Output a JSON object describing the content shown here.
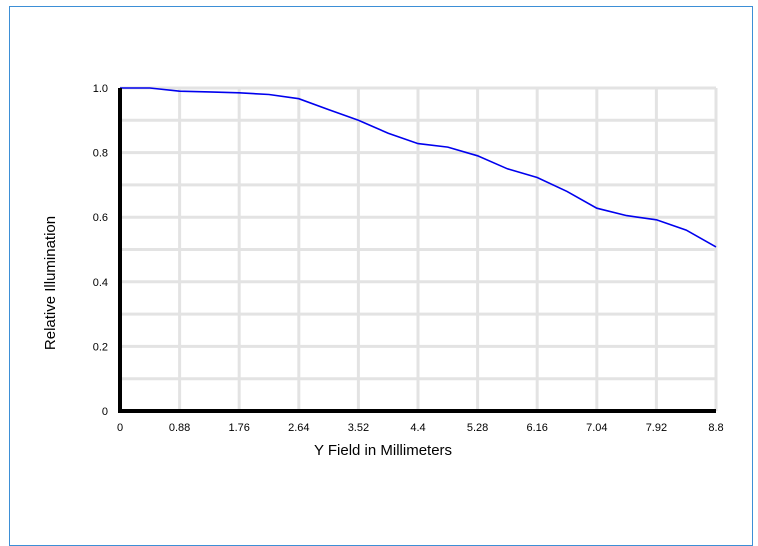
{
  "chart_data": {
    "type": "line",
    "title": "",
    "xlabel": "Y Field in Millimeters",
    "ylabel": "Relative Illumination",
    "xlim": [
      0,
      8.8
    ],
    "ylim": [
      0,
      1.0
    ],
    "x_ticks": [
      "0",
      "0.88",
      "1.76",
      "2.64",
      "3.52",
      "4.4",
      "5.28",
      "6.16",
      "7.04",
      "7.92",
      "8.8"
    ],
    "y_ticks": [
      "0",
      "0.2",
      "0.4",
      "0.6",
      "0.8",
      "1.0"
    ],
    "grid": true,
    "series": [
      {
        "color": "#0000ee",
        "x": [
          0,
          0.44,
          0.88,
          1.32,
          1.76,
          2.2,
          2.64,
          3.08,
          3.52,
          3.96,
          4.4,
          4.84,
          5.28,
          5.72,
          6.16,
          6.6,
          7.04,
          7.48,
          7.92,
          8.36,
          8.8
        ],
        "y": [
          1.0,
          1.0,
          0.99,
          0.988,
          0.985,
          0.98,
          0.967,
          0.933,
          0.9,
          0.86,
          0.828,
          0.817,
          0.79,
          0.75,
          0.723,
          0.68,
          0.628,
          0.605,
          0.592,
          0.56,
          0.508
        ]
      }
    ]
  }
}
